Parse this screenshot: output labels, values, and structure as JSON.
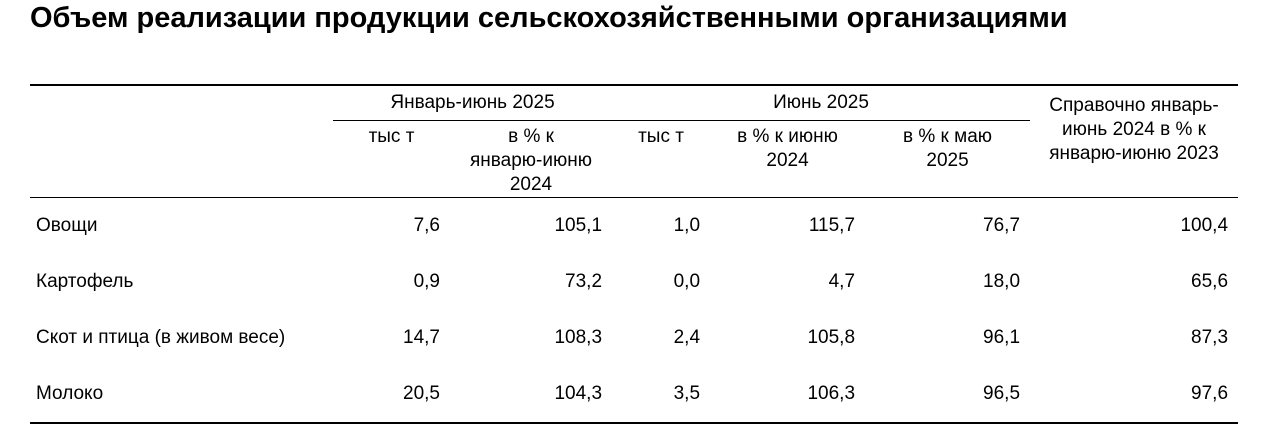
{
  "title": "Объем реализации продукции сельскохозяйственными организациями",
  "table": {
    "groups": [
      "Январь-июнь 2025",
      "Июнь 2025",
      "Справочно январь-июнь 2024 в % к январю-июню 2023"
    ],
    "subheaders": [
      "тыс т",
      "в % к январю-июню 2024",
      "тыс т",
      "в % к июню 2024",
      "в % к маю 2025"
    ],
    "rows": [
      [
        "Овощи",
        "7,6",
        "105,1",
        "1,0",
        "115,7",
        "76,7",
        "100,4"
      ],
      [
        "Картофель",
        "0,9",
        "73,2",
        "0,0",
        "4,7",
        "18,0",
        "65,6"
      ],
      [
        "Скот и птица (в живом весе)",
        "14,7",
        "108,3",
        "2,4",
        "105,8",
        "96,1",
        "87,3"
      ],
      [
        "Молоко",
        "20,5",
        "104,3",
        "3,5",
        "106,3",
        "96,5",
        "97,6"
      ]
    ]
  }
}
